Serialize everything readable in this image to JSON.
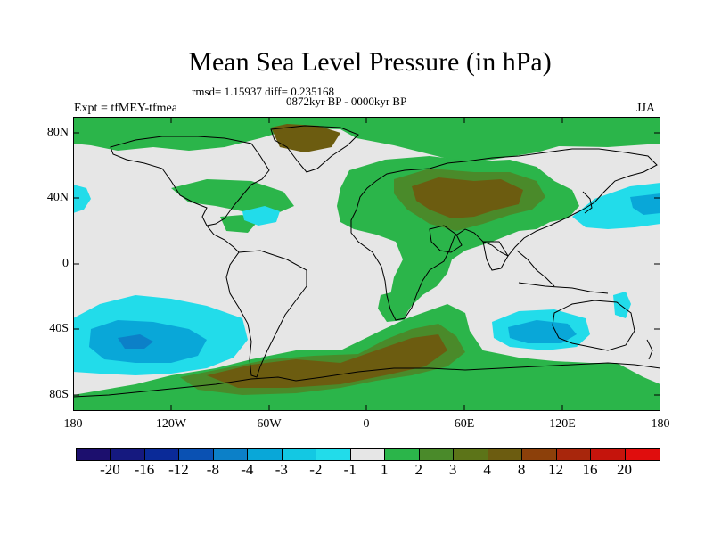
{
  "title": "Mean Sea Level Pressure (in hPa)",
  "stats_line": "rmsd= 1.15937 diff= 0.235168",
  "period_line": "0872kyr BP - 0000kyr BP",
  "experiment": "Expt = tfMEY-tfmea",
  "season": "JJA",
  "lat_ticks": [
    "80N",
    "40N",
    "0",
    "40S",
    "80S"
  ],
  "lon_ticks": [
    "180",
    "120W",
    "60W",
    "0",
    "60E",
    "120E",
    "180"
  ],
  "colorbar": {
    "labels": [
      "-20",
      "-16",
      "-12",
      "-8",
      "-4",
      "-3",
      "-2",
      "-1",
      "1",
      "2",
      "3",
      "4",
      "8",
      "12",
      "16",
      "20"
    ],
    "colors": [
      "#1c0f6e",
      "#15197f",
      "#0a2a98",
      "#0a51b3",
      "#0c80c8",
      "#09a7d8",
      "#13c8e3",
      "#22dcea",
      "#e6e6e6",
      "#2bb54a",
      "#4a8a2a",
      "#5c7418",
      "#6c5c10",
      "#8c400a",
      "#a8260c",
      "#c5140c",
      "#e00d0d"
    ]
  },
  "colors": {
    "land_neutral": "#e6e6e6",
    "green": "#2bb54a",
    "dark_green": "#4a8a2a",
    "brown": "#6c5c10",
    "light_cyan": "#22dcea",
    "cyan": "#13c8e3",
    "blue": "#0c80c8"
  }
}
